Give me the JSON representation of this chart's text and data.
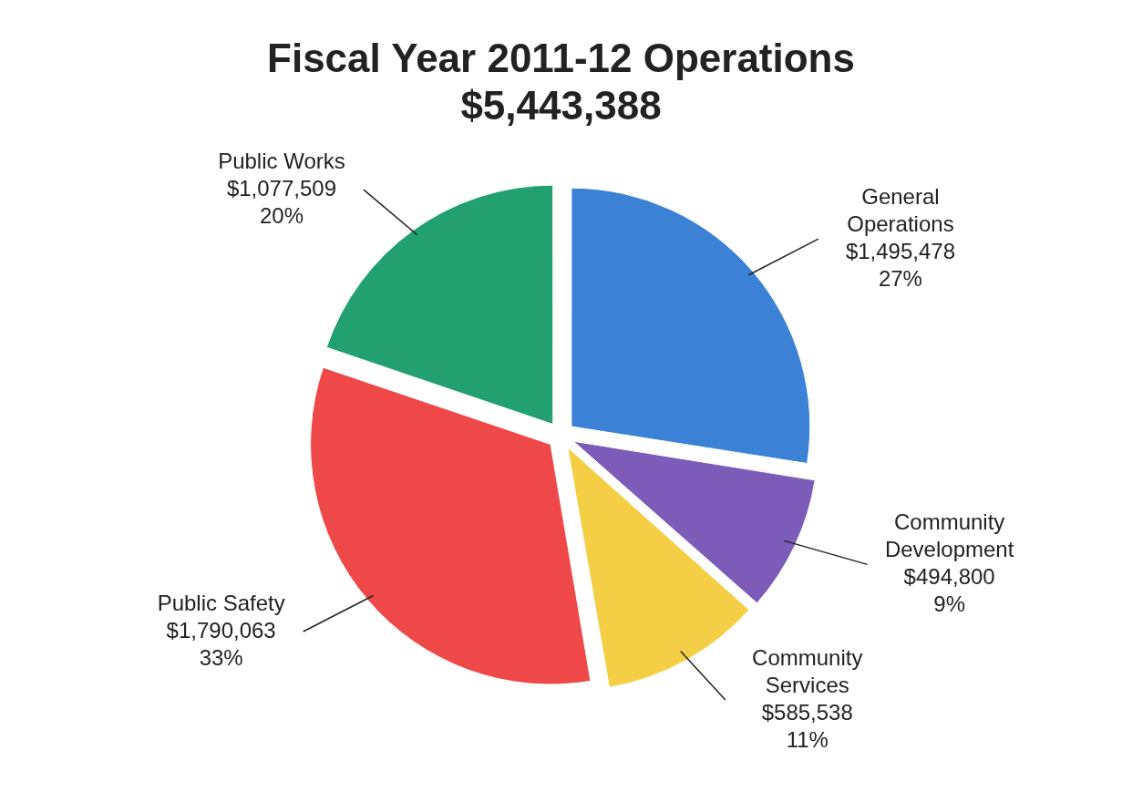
{
  "chart_data": {
    "type": "pie",
    "title": "Fiscal Year 2011-12 Operations",
    "subtitle": "$5,443,388",
    "categories": [
      "General Operations",
      "Community Development",
      "Community Services",
      "Public Safety",
      "Public Works"
    ],
    "values": [
      1495478,
      494800,
      585538,
      1790063,
      1077509
    ],
    "value_labels": [
      "$1,495,478\n27%",
      "$494,800\n9%",
      "$585,538\n11%",
      "$1,790,063\n33%",
      "$1,077,509\n20%"
    ],
    "colors": [
      "#3b82d6",
      "#7c5cb8",
      "#f4cf45",
      "#ee4848",
      "#22a06f"
    ],
    "legend": false
  }
}
